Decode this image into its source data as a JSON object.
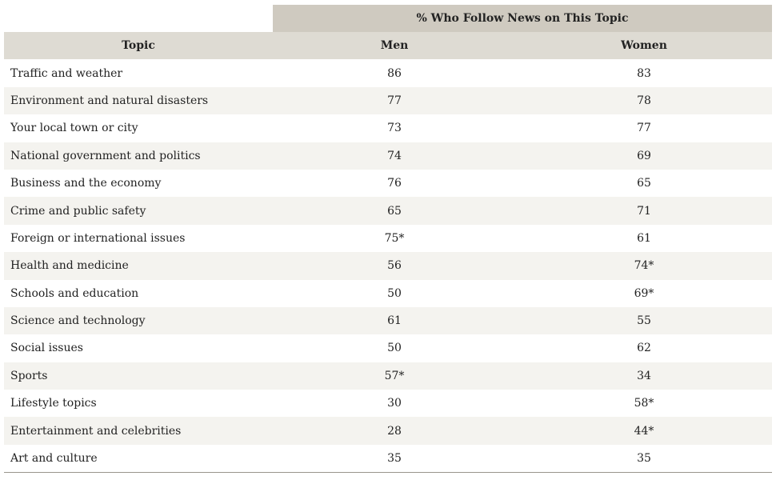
{
  "chart_data": {
    "type": "table",
    "super_header": "% Who Follow News on This Topic",
    "columns": [
      "Topic",
      "Men",
      "Women"
    ],
    "rows": [
      {
        "topic": "Traffic and weather",
        "men": "86",
        "women": "83"
      },
      {
        "topic": "Environment and natural disasters",
        "men": "77",
        "women": "78"
      },
      {
        "topic": "Your local town or city",
        "men": "73",
        "women": "77"
      },
      {
        "topic": "National government and politics",
        "men": "74",
        "women": "69"
      },
      {
        "topic": "Business and the economy",
        "men": "76",
        "women": "65"
      },
      {
        "topic": "Crime and public safety",
        "men": "65",
        "women": "71"
      },
      {
        "topic": "Foreign or international issues",
        "men": "75*",
        "women": "61"
      },
      {
        "topic": "Health and medicine",
        "men": "56",
        "women": "74*"
      },
      {
        "topic": "Schools and education",
        "men": "50",
        "women": "69*"
      },
      {
        "topic": "Science and technology",
        "men": "61",
        "women": "55"
      },
      {
        "topic": "Social issues",
        "men": "50",
        "women": "62"
      },
      {
        "topic": "Sports",
        "men": "57*",
        "women": "34"
      },
      {
        "topic": "Lifestyle topics",
        "men": "30",
        "women": "58*"
      },
      {
        "topic": "Entertainment and celebrities",
        "men": "28",
        "women": "44*"
      },
      {
        "topic": "Art and culture",
        "men": "35",
        "women": "35"
      }
    ]
  },
  "colors": {
    "super_header_bg": "#cfcac0",
    "header_bg": "#dedbd3",
    "stripe_bg": "#f4f3ef",
    "text": "#222222"
  }
}
